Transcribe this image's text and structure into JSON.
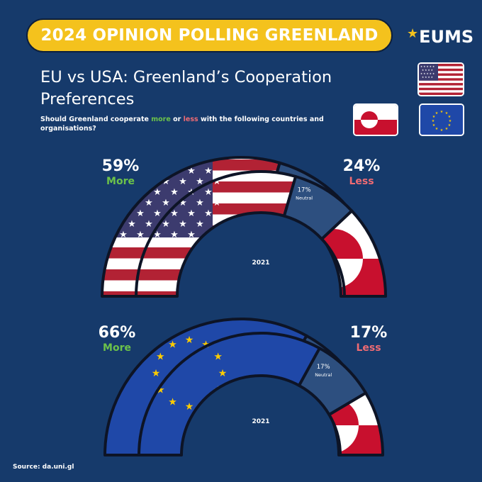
{
  "banner": {
    "title": "2024 OPINION POLLING GREENLAND"
  },
  "logo": {
    "text": "EUMS",
    "star_icon": "star-icon"
  },
  "headline": {
    "line1": "EU vs USA: Greenland’s Cooperation",
    "line2": "Preferences"
  },
  "question": {
    "pre": "Should Greenland cooperate ",
    "more": "more",
    "mid": " or ",
    "less": "less",
    "post": " with the following countries and organisations?"
  },
  "flags": {
    "usa": "usa-flag-icon",
    "greenland": "greenland-flag-icon",
    "eu": "eu-flag-icon"
  },
  "colors": {
    "background": "#163a6b",
    "banner": "#f4c21d",
    "more": "#6cc24a",
    "less": "#ef6b73",
    "neutral": "#2d4f7f",
    "usa_red": "#b22234",
    "usa_blue": "#3c3b6e",
    "greenland_red": "#c8102e",
    "eu_blue": "#1f48a8",
    "eu_gold": "#ffcc00"
  },
  "chart_data": [
    {
      "type": "pie",
      "subject": "USA",
      "inner_ring_label": "2021",
      "more": {
        "value": 59,
        "pct_label": "59%",
        "label": "More"
      },
      "neutral": {
        "value": 17,
        "pct_label": "17%",
        "label": "Neutral"
      },
      "less": {
        "value": 24,
        "pct_label": "24%",
        "label": "Less"
      }
    },
    {
      "type": "pie",
      "subject": "EU",
      "inner_ring_label": "2021",
      "more": {
        "value": 66,
        "pct_label": "66%",
        "label": "More"
      },
      "neutral": {
        "value": 17,
        "pct_label": "17%",
        "label": "Neutral"
      },
      "less": {
        "value": 17,
        "pct_label": "17%",
        "label": "Less"
      }
    }
  ],
  "source": "Source: da.uni.gl"
}
